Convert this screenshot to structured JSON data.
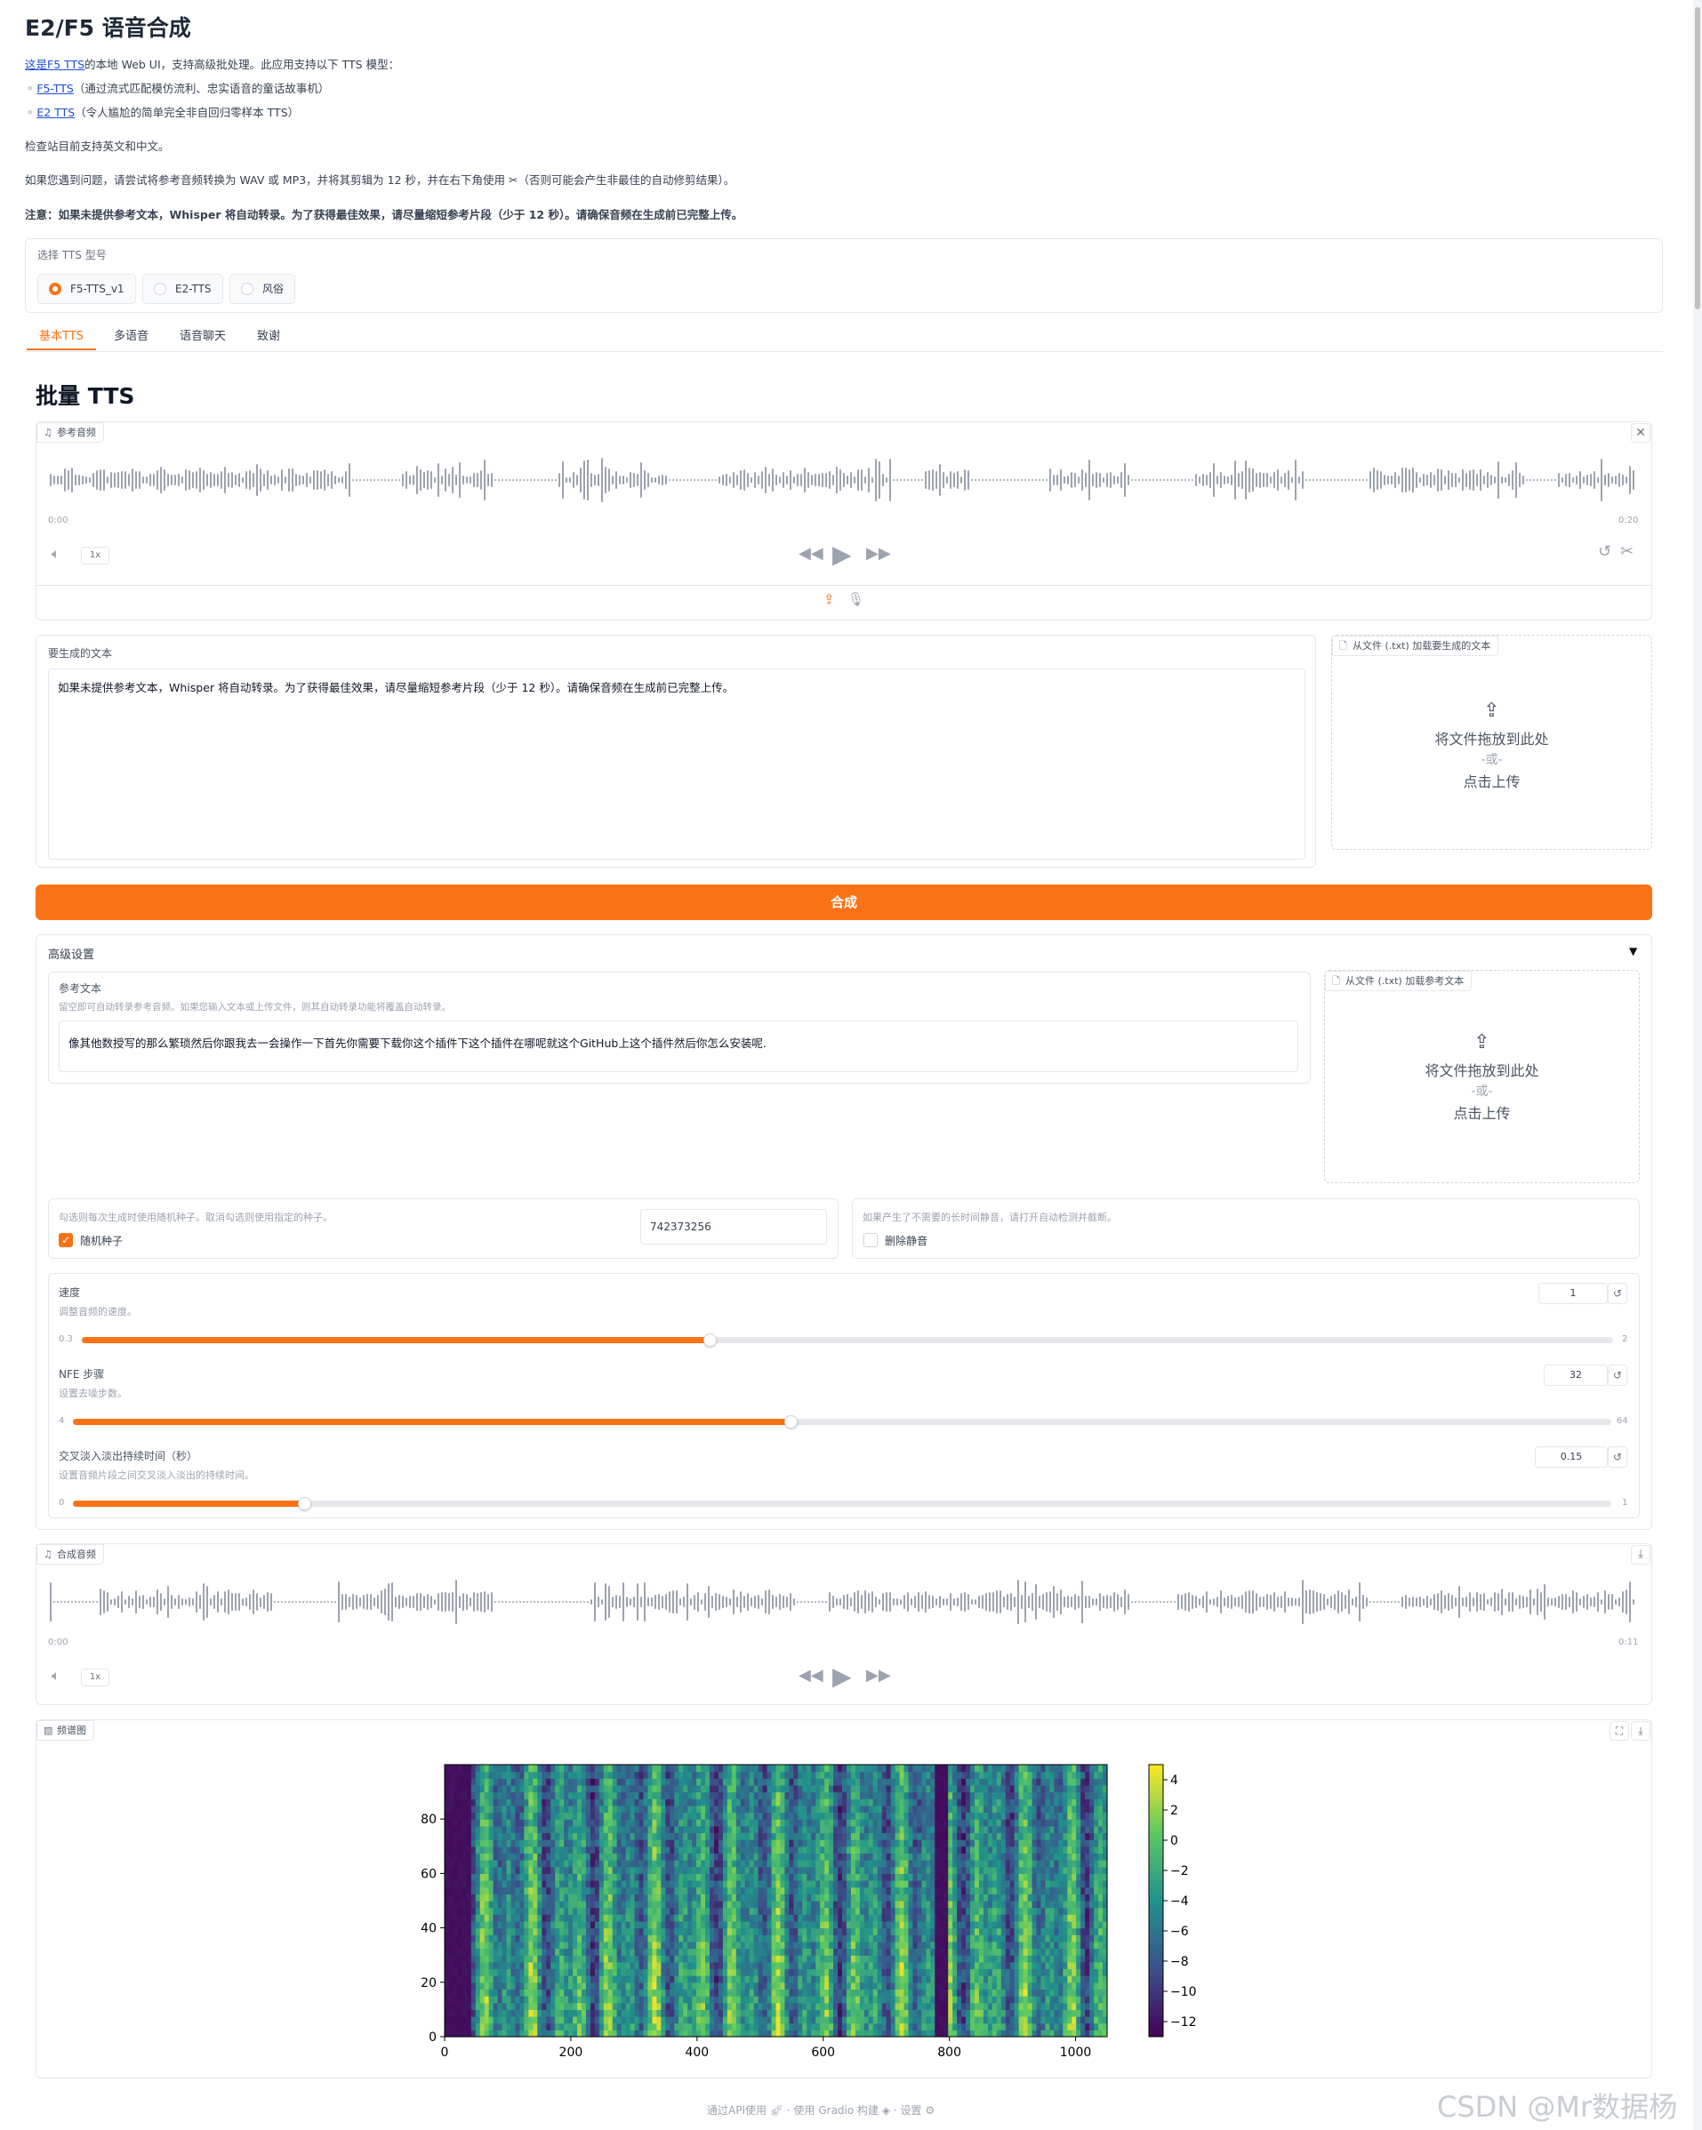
{
  "header": {
    "title": "E2/F5 语音合成",
    "intro_link": "这是F5 TTS",
    "intro_rest": "的本地 Web UI，支持高级批处理。此应用支持以下 TTS 模型：",
    "models": [
      {
        "link": "F5-TTS",
        "desc": "（通过流式匹配模仿流利、忠实语音的童话故事机）"
      },
      {
        "link": "E2 TTS",
        "desc": "（令人尴尬的简单完全非自回归零样本 TTS）"
      }
    ],
    "note1": "检查站目前支持英文和中文。",
    "note2": "如果您遇到问题，请尝试将参考音频转换为 WAV 或 MP3，并将其剪辑为 12 秒，并在右下角使用 ✂（否则可能会产生非最佳的自动修剪结果）。",
    "note3": "注意：如果未提供参考文本，Whisper 将自动转录。为了获得最佳效果，请尽量缩短参考片段（少于 12 秒）。请确保音频在生成前已完整上传。"
  },
  "model_select": {
    "label": "选择 TTS 型号",
    "options": [
      "F5-TTS_v1",
      "E2-TTS",
      "风俗"
    ],
    "selected": "F5-TTS_v1"
  },
  "tabs": [
    "基本TTS",
    "多语音",
    "语音聊天",
    "致谢"
  ],
  "active_tab": "基本TTS",
  "section_title": "批量 TTS",
  "ref_audio": {
    "label": "参考音频",
    "start": "0:00",
    "end": "0:20",
    "speed": "1x"
  },
  "gen_text": {
    "label": "要生成的文本",
    "value": "如果未提供参考文本，Whisper 将自动转录。为了获得最佳效果，请尽量缩短参考片段（少于 12 秒）。请确保音频在生成前已完整上传。",
    "upload_label": "从文件 (.txt) 加载要生成的文本"
  },
  "upload": {
    "drop": "将文件拖放到此处",
    "or": "-或-",
    "click": "点击上传"
  },
  "synthesize_button": "合成",
  "advanced": {
    "title": "高级设置",
    "ref_text_label": "参考文本",
    "ref_text_hint": "留空即可自动转录参考音频。如果您输入文本或上传文件，则其自动转录功能将覆盖自动转录。",
    "ref_text_value": "像其他数授写的那么繁琐然后你跟我去一会操作一下首先你需要下载你这个插件下这个插件在哪呢就这个GitHub上这个插件然后你怎么安装呢.",
    "ref_upload_label": "从文件 (.txt) 加载参考文本",
    "seed_hint": "勾选则每次生成时使用随机种子。取消勾选则使用指定的种子。",
    "seed_checkbox": "随机种子",
    "seed_value": "742373256",
    "silence_hint": "如果产生了不需要的长时间静音，请打开自动检测并截断。",
    "silence_checkbox": "删除静音",
    "sliders": [
      {
        "label": "速度",
        "hint": "调整音频的速度。",
        "value": "1",
        "min": "0.3",
        "max": "2",
        "fraction": 0.41
      },
      {
        "label": "NFE 步骤",
        "hint": "设置去噪步数。",
        "value": "32",
        "min": "4",
        "max": "64",
        "fraction": 0.4667
      },
      {
        "label": "交叉淡入淡出持续时间（秒）",
        "hint": "设置音频片段之间交叉淡入淡出的持续时间。",
        "value": "0.15",
        "min": "0",
        "max": "1",
        "fraction": 0.15
      }
    ]
  },
  "out_audio": {
    "label": "合成音频",
    "start": "0:00",
    "end": "0:11",
    "speed": "1x"
  },
  "spectrogram": {
    "label": "频谱图"
  },
  "chart_data": {
    "type": "heatmap",
    "xlim": [
      0,
      1050
    ],
    "ylim": [
      0,
      100
    ],
    "xticks": [
      0,
      200,
      400,
      600,
      800,
      1000
    ],
    "yticks": [
      0,
      20,
      40,
      60,
      80
    ],
    "colorbar_ticks": [
      4,
      2,
      0,
      -2,
      -4,
      -6,
      -8,
      -10,
      -12
    ],
    "colorbar_range": [
      -13,
      5
    ],
    "colormap": "viridis",
    "silent_x_ranges": [
      [
        0,
        40
      ],
      [
        780,
        800
      ]
    ]
  },
  "footer": {
    "api": "通过API使用",
    "built": "使用 Gradio 构建",
    "settings": "设置",
    "watermark": "CSDN @Mr数据杨"
  },
  "colors": {
    "accent": "#f97316",
    "link": "#1d4ed8"
  }
}
